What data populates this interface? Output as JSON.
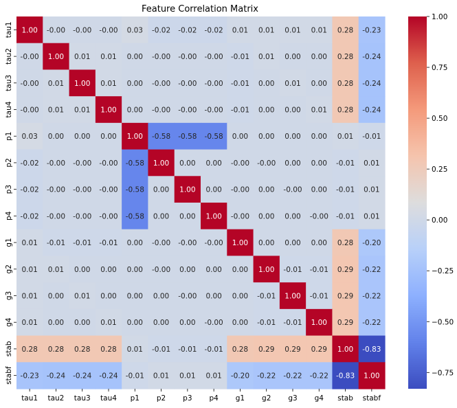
{
  "chart_data": {
    "type": "heatmap",
    "title": "Feature Correlation Matrix",
    "labels": [
      "tau1",
      "tau2",
      "tau3",
      "tau4",
      "p1",
      "p2",
      "p3",
      "p4",
      "g1",
      "g2",
      "g3",
      "g4",
      "stab",
      "stabf"
    ],
    "values": [
      [
        "1.00",
        "-0.00",
        "-0.00",
        "-0.00",
        "0.03",
        "-0.02",
        "-0.02",
        "-0.02",
        "0.01",
        "0.01",
        "0.01",
        "0.01",
        "0.28",
        "-0.23"
      ],
      [
        "-0.00",
        "1.00",
        "0.01",
        "0.01",
        "0.00",
        "-0.00",
        "-0.00",
        "-0.00",
        "-0.01",
        "0.01",
        "0.00",
        "0.00",
        "0.28",
        "-0.24"
      ],
      [
        "-0.00",
        "0.01",
        "1.00",
        "0.01",
        "0.00",
        "-0.00",
        "-0.00",
        "-0.00",
        "-0.01",
        "0.00",
        "0.01",
        "0.00",
        "0.28",
        "-0.24"
      ],
      [
        "-0.00",
        "0.01",
        "0.01",
        "1.00",
        "0.00",
        "-0.00",
        "-0.00",
        "-0.00",
        "-0.01",
        "0.00",
        "0.00",
        "0.01",
        "0.28",
        "-0.24"
      ],
      [
        "0.03",
        "0.00",
        "0.00",
        "0.00",
        "1.00",
        "-0.58",
        "-0.58",
        "-0.58",
        "0.00",
        "0.00",
        "0.00",
        "0.00",
        "0.01",
        "-0.01"
      ],
      [
        "-0.02",
        "-0.00",
        "-0.00",
        "-0.00",
        "-0.58",
        "1.00",
        "0.00",
        "0.00",
        "-0.00",
        "-0.00",
        "0.00",
        "0.00",
        "-0.01",
        "0.01"
      ],
      [
        "-0.02",
        "-0.00",
        "-0.00",
        "-0.00",
        "-0.58",
        "0.00",
        "1.00",
        "0.00",
        "-0.00",
        "0.00",
        "-0.00",
        "0.00",
        "-0.01",
        "0.01"
      ],
      [
        "-0.02",
        "-0.00",
        "-0.00",
        "-0.00",
        "-0.58",
        "0.00",
        "0.00",
        "1.00",
        "-0.00",
        "0.00",
        "0.00",
        "-0.00",
        "-0.01",
        "0.01"
      ],
      [
        "0.01",
        "-0.01",
        "-0.01",
        "-0.01",
        "0.00",
        "-0.00",
        "-0.00",
        "-0.00",
        "1.00",
        "0.00",
        "0.00",
        "0.00",
        "0.28",
        "-0.20"
      ],
      [
        "0.01",
        "0.01",
        "0.00",
        "0.00",
        "0.00",
        "-0.00",
        "0.00",
        "0.00",
        "0.00",
        "1.00",
        "-0.01",
        "-0.01",
        "0.29",
        "-0.22"
      ],
      [
        "0.01",
        "0.00",
        "0.01",
        "0.00",
        "0.00",
        "0.00",
        "-0.00",
        "0.00",
        "0.00",
        "-0.01",
        "1.00",
        "-0.01",
        "0.29",
        "-0.22"
      ],
      [
        "0.01",
        "0.00",
        "0.00",
        "0.01",
        "0.00",
        "0.00",
        "0.00",
        "-0.00",
        "0.00",
        "-0.01",
        "-0.01",
        "1.00",
        "0.29",
        "-0.22"
      ],
      [
        "0.28",
        "0.28",
        "0.28",
        "0.28",
        "0.01",
        "-0.01",
        "-0.01",
        "-0.01",
        "0.28",
        "0.29",
        "0.29",
        "0.29",
        "1.00",
        "-0.83"
      ],
      [
        "-0.23",
        "-0.24",
        "-0.24",
        "-0.24",
        "-0.01",
        "0.01",
        "0.01",
        "0.01",
        "-0.20",
        "-0.22",
        "-0.22",
        "-0.22",
        "-0.83",
        "1.00"
      ]
    ],
    "color_range": [
      -0.83,
      1.0
    ],
    "colormap": "coolwarm",
    "colorbar_ticks": [
      "1.00",
      "0.75",
      "0.50",
      "0.25",
      "0.00",
      "−0.25",
      "−0.50",
      "−0.75"
    ],
    "colorbar_tick_values": [
      1.0,
      0.75,
      0.5,
      0.25,
      0.0,
      -0.25,
      -0.5,
      -0.75
    ],
    "legend": "colorbar-right"
  }
}
